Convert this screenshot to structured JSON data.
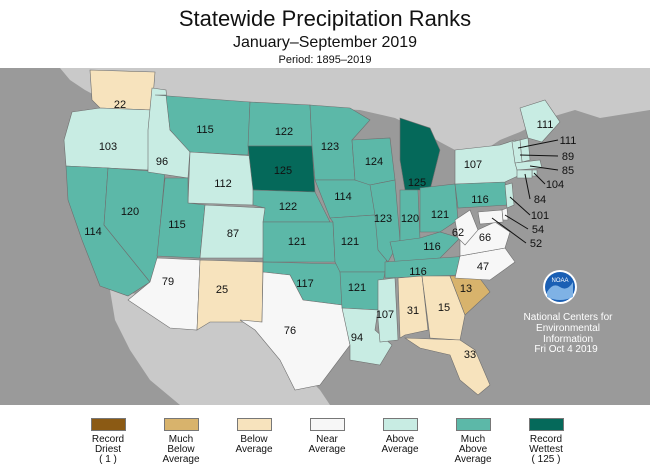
{
  "title": "Statewide Precipitation Ranks",
  "subtitle": "January–September 2019",
  "period": "Period: 1895–2019",
  "colors": {
    "record_driest": "#8b5a14",
    "much_below": "#d8b36c",
    "below": "#f7e3bd",
    "near": "#f7f7f7",
    "above": "#c8ece3",
    "much_above": "#5cb8a8",
    "record_wettest": "#05695a",
    "background": "#9a9a9a",
    "land_outside": "#c9c9c9"
  },
  "states": [
    {
      "id": "WA",
      "rank": "22",
      "category": "below"
    },
    {
      "id": "OR",
      "rank": "103",
      "category": "above"
    },
    {
      "id": "CA",
      "rank": "114",
      "category": "much_above"
    },
    {
      "id": "NV",
      "rank": "120",
      "category": "much_above"
    },
    {
      "id": "ID",
      "rank": "96",
      "category": "above"
    },
    {
      "id": "MT",
      "rank": "115",
      "category": "much_above"
    },
    {
      "id": "WY",
      "rank": "112",
      "category": "above"
    },
    {
      "id": "UT",
      "rank": "115",
      "category": "much_above"
    },
    {
      "id": "CO",
      "rank": "87",
      "category": "above"
    },
    {
      "id": "AZ",
      "rank": "79",
      "category": "near"
    },
    {
      "id": "NM",
      "rank": "25",
      "category": "below"
    },
    {
      "id": "ND",
      "rank": "122",
      "category": "much_above"
    },
    {
      "id": "SD",
      "rank": "125",
      "category": "record_wettest"
    },
    {
      "id": "NE",
      "rank": "122",
      "category": "much_above"
    },
    {
      "id": "KS",
      "rank": "121",
      "category": "much_above"
    },
    {
      "id": "OK",
      "rank": "117",
      "category": "much_above"
    },
    {
      "id": "TX",
      "rank": "76",
      "category": "near"
    },
    {
      "id": "MN",
      "rank": "123",
      "category": "much_above"
    },
    {
      "id": "IA",
      "rank": "114",
      "category": "much_above"
    },
    {
      "id": "MO",
      "rank": "121",
      "category": "much_above"
    },
    {
      "id": "AR",
      "rank": "121",
      "category": "much_above"
    },
    {
      "id": "LA",
      "rank": "94",
      "category": "above"
    },
    {
      "id": "WI",
      "rank": "124",
      "category": "much_above"
    },
    {
      "id": "IL",
      "rank": "123",
      "category": "much_above"
    },
    {
      "id": "MI",
      "rank": "125",
      "category": "record_wettest"
    },
    {
      "id": "IN",
      "rank": "120",
      "category": "much_above"
    },
    {
      "id": "OH",
      "rank": "121",
      "category": "much_above"
    },
    {
      "id": "KY",
      "rank": "116",
      "category": "much_above"
    },
    {
      "id": "TN",
      "rank": "116",
      "category": "much_above"
    },
    {
      "id": "MS",
      "rank": "107",
      "category": "above"
    },
    {
      "id": "AL",
      "rank": "31",
      "category": "below"
    },
    {
      "id": "GA",
      "rank": "15",
      "category": "below"
    },
    {
      "id": "FL",
      "rank": "33",
      "category": "below"
    },
    {
      "id": "SC",
      "rank": "13",
      "category": "much_below"
    },
    {
      "id": "NC",
      "rank": "47",
      "category": "near"
    },
    {
      "id": "VA",
      "rank": "66",
      "category": "near"
    },
    {
      "id": "WV",
      "rank": "62",
      "category": "near"
    },
    {
      "id": "PA",
      "rank": "116",
      "category": "much_above"
    },
    {
      "id": "NY",
      "rank": "107",
      "category": "above"
    },
    {
      "id": "ME",
      "rank": "111",
      "category": "above"
    },
    {
      "id": "NH",
      "rank": "111",
      "category": "above"
    },
    {
      "id": "VT",
      "rank": "89",
      "category": "above"
    },
    {
      "id": "MA",
      "rank": "85",
      "category": "above"
    },
    {
      "id": "RI",
      "rank": "104",
      "category": "above"
    },
    {
      "id": "CT",
      "rank": "84",
      "category": "above"
    },
    {
      "id": "NJ",
      "rank": "101",
      "category": "above"
    },
    {
      "id": "DE",
      "rank": "54",
      "category": "near"
    },
    {
      "id": "MD",
      "rank": "52",
      "category": "near"
    }
  ],
  "legend": [
    {
      "key": "record_driest",
      "line1": "Record",
      "line2": "Driest",
      "line3": "( 1 )"
    },
    {
      "key": "much_below",
      "line1": "Much",
      "line2": "Below",
      "line3": "Average"
    },
    {
      "key": "below",
      "line1": "Below",
      "line2": "Average",
      "line3": ""
    },
    {
      "key": "near",
      "line1": "Near",
      "line2": "Average",
      "line3": ""
    },
    {
      "key": "above",
      "line1": "Above",
      "line2": "Average",
      "line3": ""
    },
    {
      "key": "much_above",
      "line1": "Much",
      "line2": "Above",
      "line3": "Average"
    },
    {
      "key": "record_wettest",
      "line1": "Record",
      "line2": "Wettest",
      "line3": "( 125 )"
    }
  ],
  "noaa": {
    "logo_text": "NOAA",
    "line1": "National Centers for",
    "line2": "Environmental",
    "line3": "Information",
    "date": "Fri Oct  4 2019"
  }
}
